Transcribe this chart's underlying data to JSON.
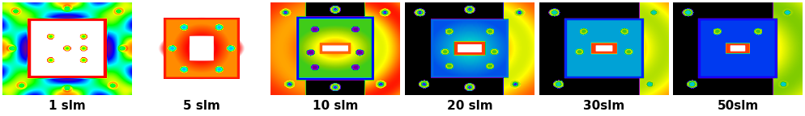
{
  "labels": [
    "1 slm",
    "5 slm",
    "10 slm",
    "20 slm",
    "30slm",
    "50slm"
  ],
  "n_panels": 6,
  "label_fontsize": 11,
  "label_color": "#000000",
  "figure_bg": "#ffffff"
}
